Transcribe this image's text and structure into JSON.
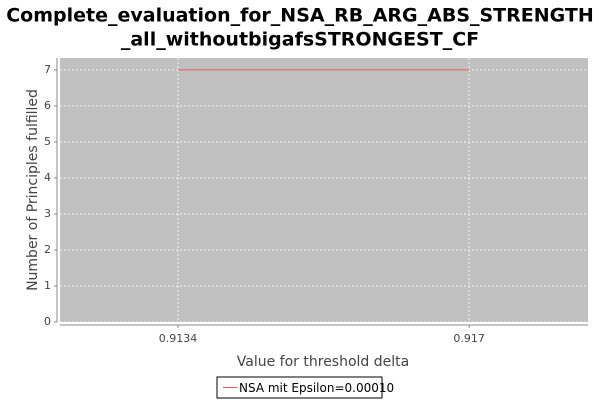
{
  "chart_data": {
    "type": "line",
    "title": [
      "Complete_evaluation_for_NSA_RB_ARG_ABS_STRENGTH",
      "_all_withoutbigafsSTRONGEST_CF"
    ],
    "x_label": "Value for threshold delta",
    "y_label": "Number of Principles fulfilled",
    "x": [
      0.9134,
      0.917
    ],
    "series": [
      {
        "name": "NSA mit Epsilon=0.00010",
        "color": "#e05a5a",
        "values": [
          7,
          7
        ]
      }
    ],
    "xlim": [
      0.91194,
      0.91847
    ],
    "xticks": [
      0.9134,
      0.917
    ],
    "ylim": [
      0,
      7.33
    ],
    "yticks": [
      0,
      1,
      2,
      3,
      4,
      5,
      6,
      7
    ],
    "grid": true,
    "legend": "bottom"
  }
}
